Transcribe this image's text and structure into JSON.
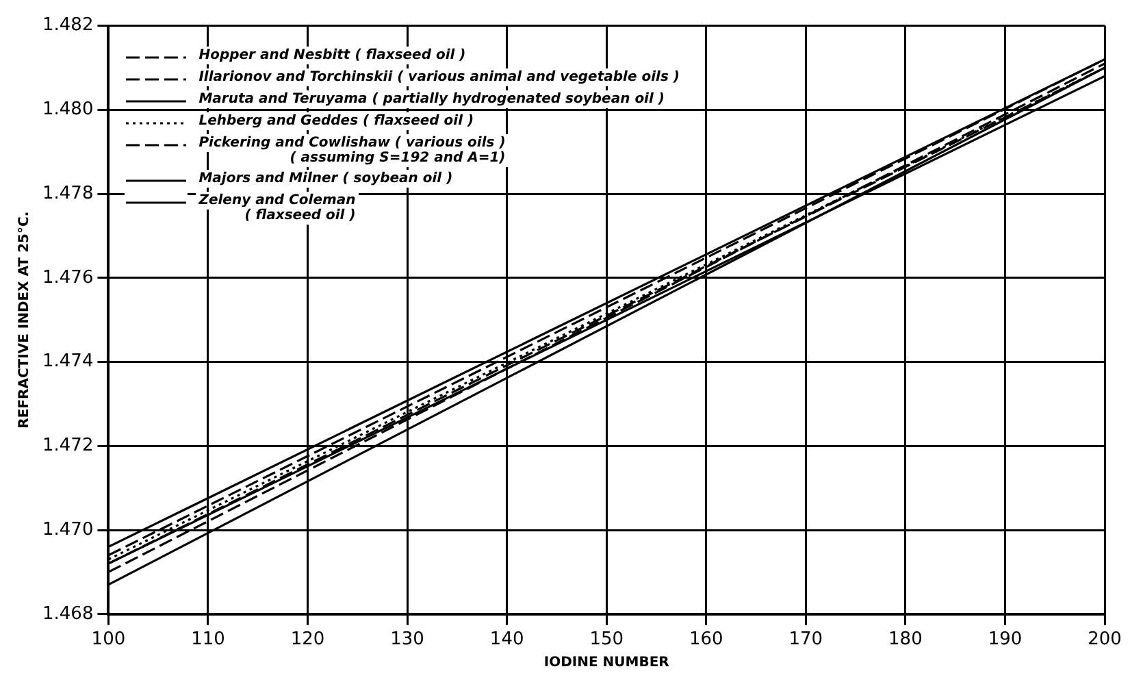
{
  "chart_data": {
    "type": "line",
    "xlabel": "IODINE NUMBER",
    "ylabel": "REFRACTIVE INDEX AT 25°C.",
    "x": [
      100,
      200
    ],
    "xlim": [
      100,
      200
    ],
    "xticks": [
      100,
      110,
      120,
      130,
      140,
      150,
      160,
      170,
      180,
      190,
      200
    ],
    "ylim": [
      1.468,
      1.482
    ],
    "yticks": [
      {
        "value": 1.468,
        "label": "1.468"
      },
      {
        "value": 1.47,
        "label": "1.470"
      },
      {
        "value": 1.472,
        "label": "1.472"
      },
      {
        "value": 1.474,
        "label": "1.474"
      },
      {
        "value": 1.476,
        "label": "1.476"
      },
      {
        "value": 1.478,
        "label": "1.478"
      },
      {
        "value": 1.48,
        "label": "1.480"
      },
      {
        "value": 1.482,
        "label": "1.482"
      }
    ],
    "grid": true,
    "legend": "top left",
    "marker": "none",
    "series": [
      {
        "name": "Hopper and Nesbitt ( flaxseed oil )",
        "color": "#000000",
        "line_style": "dashed",
        "values": [
          1.4694,
          1.4812
        ]
      },
      {
        "name": "Illarionov and Torchinskii ( various animal and vegetable oils )",
        "color": "#000000",
        "line_style": "dashed",
        "values": [
          1.4692,
          1.481
        ]
      },
      {
        "name": "Maruta and Teruyama ( partially hydrogenated soybean oil )",
        "color": "#000000",
        "line_style": "solid",
        "values": [
          1.4696,
          1.4812
        ]
      },
      {
        "name": "Lehberg and Geddes ( flaxseed oil )",
        "color": "#000000",
        "line_style": "dotted",
        "values": [
          1.4693,
          1.481
        ]
      },
      {
        "name": "Pickering and Cowlishaw ( various oils )\n( assuming S=192 and A=1)",
        "color": "#000000",
        "line_style": "dashed",
        "values": [
          1.469,
          1.4811
        ]
      },
      {
        "name": "Majors and Milner ( soybean oil )",
        "color": "#000000",
        "line_style": "solid",
        "values": [
          1.4692,
          1.4808
        ]
      },
      {
        "name": "Zeleny and Coleman\n( flaxseed oil )",
        "color": "#000000",
        "line_style": "solid",
        "values": [
          1.4687,
          1.481
        ]
      }
    ]
  }
}
